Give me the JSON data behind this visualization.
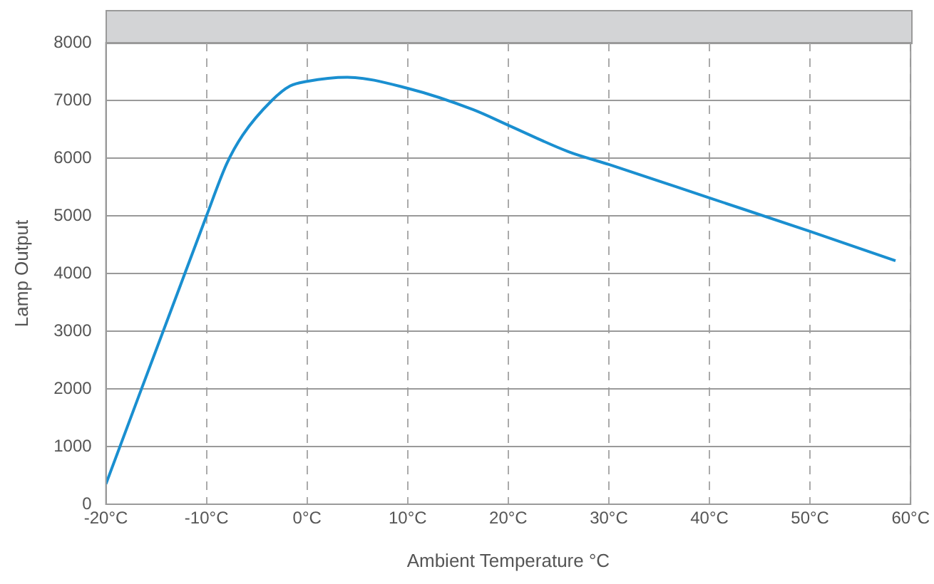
{
  "chart_data": {
    "type": "line",
    "xlabel": "Ambient Temperature °C",
    "ylabel": "Lamp Output",
    "x": [
      -20,
      -10,
      -8,
      -6.4,
      -3.5,
      -1.7,
      0,
      4,
      10,
      16.5,
      20,
      26,
      30,
      40,
      50,
      58.5
    ],
    "series": [
      {
        "color": "#1a8fd0",
        "values": [
          350,
          5000,
          5900,
          6400,
          7000,
          7250,
          7330,
          7400,
          7210,
          6840,
          6570,
          6110,
          5890,
          5310,
          4730,
          4220
        ]
      }
    ],
    "xlim": [
      -20,
      60
    ],
    "xticks": [
      {
        "value": -20,
        "label": "-20°C"
      },
      {
        "value": -10,
        "label": "-10°C"
      },
      {
        "value": 0,
        "label": "0°C"
      },
      {
        "value": 10,
        "label": "10°C"
      },
      {
        "value": 20,
        "label": "20°C"
      },
      {
        "value": 30,
        "label": "30°C"
      },
      {
        "value": 40,
        "label": "40°C"
      },
      {
        "value": 50,
        "label": "50°C"
      },
      {
        "value": 60,
        "label": "60°C"
      }
    ],
    "ylim": [
      0,
      8000
    ],
    "yticks": [
      0,
      1000,
      2000,
      3000,
      4000,
      5000,
      6000,
      7000,
      8000
    ],
    "grid": true,
    "legend": false,
    "marker": "none",
    "line_style": "solid"
  }
}
